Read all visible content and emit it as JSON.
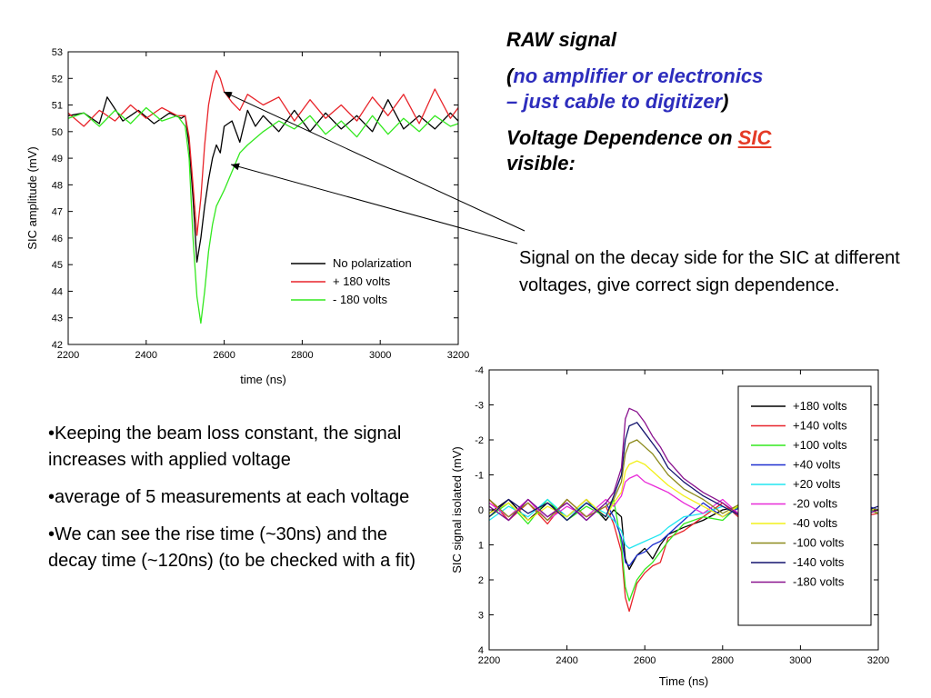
{
  "heading": {
    "raw_signal": "RAW signal",
    "open_paren": "(",
    "note_part1": "no amplifier or electronics",
    "note_part2": "– just cable to digitizer",
    "close_paren": ")",
    "voltage_dep_prefix": "Voltage Dependence on ",
    "sic_word": "SIC",
    "visible_word": "visible:"
  },
  "callout_text": "Signal on the decay side for the SIC at different voltages, give correct sign dependence.",
  "bullets": [
    "•Keeping the beam loss constant, the signal increases with applied voltage",
    "•average of 5 measurements at each voltage",
    "•We can see the rise time (~30ns) and the decay time (~120ns) (to be checked with a fit)"
  ],
  "chart_data": [
    {
      "type": "line",
      "title": "",
      "xlabel": "time (ns)",
      "ylabel": "SIC amplitude (mV)",
      "xlim": [
        2200,
        3200
      ],
      "ylim": [
        42,
        53
      ],
      "xticks": [
        2200,
        2400,
        2600,
        2800,
        3000,
        3200
      ],
      "yticks": [
        42,
        43,
        44,
        45,
        46,
        47,
        48,
        49,
        50,
        51,
        52,
        53
      ],
      "legend_position": "bottom-right",
      "grid": false,
      "series": [
        {
          "name": "No polarization",
          "color": "#000000",
          "x": [
            2200,
            2240,
            2280,
            2300,
            2340,
            2380,
            2420,
            2460,
            2490,
            2500,
            2510,
            2520,
            2530,
            2540,
            2550,
            2560,
            2570,
            2580,
            2590,
            2600,
            2610,
            2620,
            2640,
            2660,
            2680,
            2700,
            2740,
            2780,
            2820,
            2860,
            2900,
            2940,
            2980,
            3020,
            3060,
            3100,
            3140,
            3180,
            3200
          ],
          "y": [
            50.6,
            50.7,
            50.3,
            51.3,
            50.4,
            50.8,
            50.3,
            50.7,
            50.5,
            50.6,
            49.5,
            47.5,
            45.1,
            46.0,
            47.2,
            48.2,
            49.0,
            49.5,
            49.2,
            50.2,
            50.3,
            50.4,
            49.6,
            50.8,
            50.2,
            50.6,
            50.0,
            50.8,
            50.0,
            50.7,
            50.1,
            50.6,
            50.0,
            51.2,
            50.1,
            50.6,
            50.1,
            50.7,
            50.4
          ]
        },
        {
          "name": "+ 180 volts",
          "color": "#e8242a",
          "x": [
            2200,
            2240,
            2280,
            2320,
            2360,
            2400,
            2440,
            2480,
            2500,
            2510,
            2520,
            2530,
            2540,
            2550,
            2560,
            2570,
            2580,
            2590,
            2600,
            2620,
            2640,
            2660,
            2700,
            2740,
            2780,
            2820,
            2860,
            2900,
            2940,
            2980,
            3020,
            3060,
            3100,
            3140,
            3180,
            3200
          ],
          "y": [
            50.7,
            50.2,
            50.8,
            50.4,
            51.0,
            50.5,
            50.9,
            50.6,
            50.6,
            49.8,
            48.0,
            46.1,
            47.5,
            49.5,
            51.0,
            51.8,
            52.3,
            52.0,
            51.5,
            51.1,
            50.8,
            51.4,
            51.0,
            51.3,
            50.4,
            51.2,
            50.5,
            51.0,
            50.4,
            51.3,
            50.6,
            51.4,
            50.3,
            51.6,
            50.5,
            50.9
          ]
        },
        {
          "name": "- 180 volts",
          "color": "#33e81f",
          "x": [
            2200,
            2240,
            2280,
            2320,
            2360,
            2400,
            2440,
            2480,
            2500,
            2510,
            2520,
            2530,
            2540,
            2550,
            2560,
            2570,
            2580,
            2600,
            2620,
            2640,
            2660,
            2700,
            2740,
            2780,
            2820,
            2860,
            2900,
            2940,
            2980,
            3020,
            3060,
            3100,
            3140,
            3180,
            3200
          ],
          "y": [
            50.5,
            50.7,
            50.2,
            50.8,
            50.3,
            50.9,
            50.4,
            50.6,
            50.2,
            49.0,
            46.0,
            43.8,
            42.8,
            44.0,
            45.5,
            46.5,
            47.2,
            47.8,
            48.5,
            49.2,
            49.5,
            50.0,
            50.4,
            50.1,
            50.6,
            49.9,
            50.4,
            49.8,
            50.6,
            49.9,
            50.5,
            50.0,
            50.6,
            50.2,
            50.3
          ]
        }
      ],
      "annotations": []
    },
    {
      "type": "line",
      "title": "",
      "xlabel": "Time (ns)",
      "ylabel": "SIC signal isolated (mV)",
      "xlim": [
        2200,
        3200
      ],
      "ylim": [
        4,
        -4
      ],
      "y_inverted": true,
      "xticks": [
        2200,
        2400,
        2600,
        2800,
        3000,
        3200
      ],
      "yticks": [
        -4,
        -3,
        -2,
        -1,
        0,
        1,
        2,
        3,
        4
      ],
      "legend_position": "top-right",
      "grid": false,
      "series": [
        {
          "name": "+180 volts",
          "color": "#000000",
          "x": [
            2200,
            2250,
            2300,
            2350,
            2400,
            2450,
            2500,
            2520,
            2540,
            2550,
            2560,
            2580,
            2600,
            2620,
            2640,
            2660,
            2700,
            2750,
            2800,
            2850,
            2900,
            2950,
            3000,
            3050,
            3100,
            3150,
            3200
          ],
          "y": [
            0.1,
            -0.3,
            0.3,
            -0.2,
            0.2,
            -0.3,
            0.3,
            0.0,
            0.2,
            1.4,
            1.7,
            1.3,
            1.1,
            1.4,
            1.0,
            0.7,
            0.5,
            0.3,
            0.0,
            -0.1,
            0.2,
            -0.3,
            0.1,
            -0.2,
            0.3,
            -0.1,
            0.0
          ]
        },
        {
          "name": "+140 volts",
          "color": "#e8242a",
          "x": [
            2200,
            2250,
            2300,
            2350,
            2400,
            2450,
            2500,
            2520,
            2540,
            2550,
            2560,
            2580,
            2600,
            2620,
            2640,
            2660,
            2700,
            2750,
            2800,
            2850,
            2900,
            2950,
            3000,
            3050,
            3100,
            3150,
            3200
          ],
          "y": [
            -0.3,
            0.3,
            -0.2,
            0.4,
            -0.3,
            0.2,
            -0.1,
            0.4,
            1.2,
            2.5,
            2.9,
            2.1,
            1.8,
            1.6,
            1.5,
            0.8,
            0.6,
            0.2,
            -0.2,
            0.3,
            -0.3,
            0.2,
            -0.2,
            0.3,
            -0.2,
            0.2,
            0.1
          ]
        },
        {
          "name": "+100 volts",
          "color": "#33e81f",
          "x": [
            2200,
            2250,
            2300,
            2350,
            2400,
            2450,
            2500,
            2520,
            2540,
            2550,
            2560,
            2580,
            2600,
            2620,
            2640,
            2660,
            2700,
            2750,
            2800,
            2850,
            2900,
            2950,
            3000,
            3050,
            3100,
            3150,
            3200
          ],
          "y": [
            0.2,
            -0.2,
            0.4,
            -0.3,
            0.3,
            -0.1,
            0.2,
            -0.3,
            1.0,
            2.2,
            2.6,
            2.0,
            1.7,
            1.5,
            1.2,
            0.9,
            0.4,
            0.2,
            0.3,
            -0.2,
            0.2,
            -0.2,
            0.3,
            -0.3,
            0.2,
            -0.1,
            0.1
          ]
        },
        {
          "name": "+40 volts",
          "color": "#1e2fd0",
          "x": [
            2200,
            2250,
            2300,
            2350,
            2400,
            2450,
            2500,
            2520,
            2540,
            2550,
            2560,
            2580,
            2600,
            2620,
            2640,
            2660,
            2700,
            2750,
            2800,
            2850,
            2900,
            2950,
            3000,
            3050,
            3100,
            3150,
            3200
          ],
          "y": [
            -0.1,
            0.3,
            -0.3,
            0.2,
            -0.2,
            0.3,
            -0.2,
            0.2,
            0.8,
            1.5,
            1.6,
            1.3,
            1.2,
            1.0,
            0.9,
            0.7,
            0.3,
            -0.2,
            0.2,
            -0.1,
            0.1,
            -0.2,
            0.2,
            -0.1,
            0.2,
            -0.2,
            0.0
          ]
        },
        {
          "name": "+20 volts",
          "color": "#22e6f0",
          "x": [
            2200,
            2250,
            2300,
            2350,
            2400,
            2450,
            2500,
            2520,
            2540,
            2550,
            2560,
            2580,
            2600,
            2620,
            2640,
            2660,
            2700,
            2750,
            2800,
            2850,
            2900,
            2950,
            3000,
            3050,
            3100,
            3150,
            3200
          ],
          "y": [
            0.3,
            -0.1,
            0.2,
            -0.3,
            0.2,
            -0.2,
            0.1,
            0.3,
            0.6,
            1.0,
            1.1,
            1.0,
            0.9,
            0.8,
            0.7,
            0.5,
            0.2,
            0.1,
            -0.1,
            0.2,
            -0.2,
            0.1,
            -0.1,
            0.2,
            -0.1,
            0.1,
            0.0
          ]
        },
        {
          "name": "-20 volts",
          "color": "#e82ad8",
          "x": [
            2200,
            2250,
            2300,
            2350,
            2400,
            2450,
            2500,
            2520,
            2540,
            2550,
            2560,
            2580,
            2600,
            2620,
            2640,
            2660,
            2700,
            2750,
            2800,
            2850,
            2900,
            2950,
            3000,
            3050,
            3100,
            3150,
            3200
          ],
          "y": [
            -0.2,
            0.2,
            -0.3,
            0.3,
            -0.1,
            0.2,
            -0.3,
            -0.1,
            -0.4,
            -0.8,
            -0.9,
            -1.0,
            -0.8,
            -0.7,
            -0.6,
            -0.5,
            -0.2,
            0.1,
            -0.3,
            0.2,
            -0.1,
            0.2,
            -0.2,
            0.1,
            -0.2,
            0.2,
            0.0
          ]
        },
        {
          "name": "-40 volts",
          "color": "#f2f01a",
          "x": [
            2200,
            2250,
            2300,
            2350,
            2400,
            2450,
            2500,
            2520,
            2540,
            2550,
            2560,
            2580,
            2600,
            2620,
            2640,
            2660,
            2700,
            2750,
            2800,
            2850,
            2900,
            2950,
            3000,
            3050,
            3100,
            3150,
            3200
          ],
          "y": [
            0.1,
            -0.2,
            0.3,
            -0.1,
            0.2,
            -0.3,
            0.2,
            -0.2,
            -0.5,
            -1.1,
            -1.3,
            -1.4,
            -1.3,
            -1.1,
            -0.9,
            -0.7,
            -0.4,
            -0.1,
            0.2,
            -0.2,
            0.2,
            -0.1,
            0.1,
            -0.2,
            0.2,
            -0.1,
            0.0
          ]
        },
        {
          "name": "-100 volts",
          "color": "#8c8a1c",
          "x": [
            2200,
            2250,
            2300,
            2350,
            2400,
            2450,
            2500,
            2520,
            2540,
            2550,
            2560,
            2580,
            2600,
            2620,
            2640,
            2660,
            2700,
            2750,
            2800,
            2850,
            2900,
            2950,
            3000,
            3050,
            3100,
            3150,
            3200
          ],
          "y": [
            -0.3,
            0.2,
            -0.2,
            0.3,
            -0.3,
            0.2,
            -0.1,
            -0.3,
            -0.8,
            -1.6,
            -1.9,
            -2.0,
            -1.8,
            -1.6,
            -1.3,
            -1.0,
            -0.6,
            -0.3,
            0.1,
            -0.2,
            0.3,
            -0.2,
            0.2,
            -0.3,
            0.1,
            -0.2,
            0.1
          ]
        },
        {
          "name": "-140 volts",
          "color": "#14146e",
          "x": [
            2200,
            2250,
            2300,
            2350,
            2400,
            2450,
            2500,
            2520,
            2540,
            2550,
            2560,
            2580,
            2600,
            2620,
            2640,
            2660,
            2700,
            2750,
            2800,
            2850,
            2900,
            2950,
            3000,
            3050,
            3100,
            3150,
            3200
          ],
          "y": [
            0.2,
            -0.3,
            0.1,
            -0.2,
            0.3,
            -0.2,
            0.2,
            -0.4,
            -1.0,
            -2.0,
            -2.4,
            -2.5,
            -2.2,
            -1.9,
            -1.6,
            -1.2,
            -0.8,
            -0.4,
            -0.1,
            0.2,
            -0.3,
            0.2,
            -0.1,
            0.3,
            -0.2,
            0.1,
            -0.1
          ]
        },
        {
          "name": "-180 volts",
          "color": "#8a128e",
          "x": [
            2200,
            2250,
            2300,
            2350,
            2400,
            2450,
            2500,
            2520,
            2540,
            2550,
            2560,
            2580,
            2600,
            2620,
            2640,
            2660,
            2700,
            2750,
            2800,
            2850,
            2900,
            2950,
            3000,
            3050,
            3100,
            3150,
            3200
          ],
          "y": [
            -0.1,
            0.3,
            -0.3,
            0.2,
            -0.2,
            0.3,
            -0.2,
            -0.5,
            -1.2,
            -2.6,
            -2.9,
            -2.8,
            -2.5,
            -2.1,
            -1.8,
            -1.4,
            -0.9,
            -0.5,
            -0.2,
            0.2,
            -0.2,
            0.3,
            -0.2,
            0.2,
            -0.3,
            0.2,
            0.0
          ]
        }
      ],
      "annotations": []
    }
  ]
}
